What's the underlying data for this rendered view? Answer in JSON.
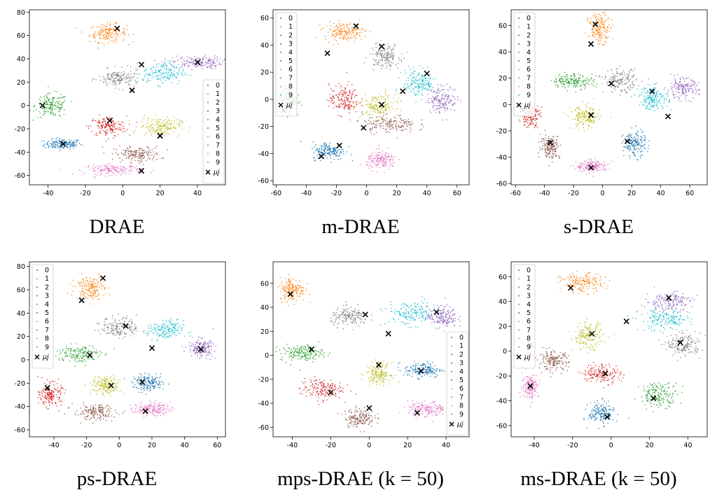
{
  "colors": [
    "#1f77b4",
    "#ff7f0e",
    "#2ca02c",
    "#d62728",
    "#9467bd",
    "#8c564b",
    "#e377c2",
    "#7f7f7f",
    "#bcbd22",
    "#17becf"
  ],
  "legend_labels": [
    "0",
    "1",
    "2",
    "3",
    "4",
    "5",
    "6",
    "7",
    "8",
    "9"
  ],
  "centroid_label": "μj",
  "captions": [
    "DRAE",
    "m-DRAE",
    "s-DRAE",
    "ps-DRAE",
    "mps-DRAE (k = 50)",
    "ms-DRAE (k = 50)"
  ],
  "chart_data": [
    {
      "type": "scatter",
      "title": "DRAE",
      "xlim": [
        -50,
        55
      ],
      "ylim": [
        -68,
        82
      ],
      "xticks": [
        -40,
        -20,
        0,
        20,
        40
      ],
      "yticks": [
        -60,
        -40,
        -20,
        0,
        20,
        40,
        60,
        80
      ],
      "legend_position": "right",
      "series": [
        {
          "name": "0",
          "center": [
            -32,
            -33
          ],
          "spread": [
            9,
            4
          ]
        },
        {
          "name": "1",
          "center": [
            -8,
            62
          ],
          "spread": [
            9,
            7
          ]
        },
        {
          "name": "2",
          "center": [
            -38,
            0
          ],
          "spread": [
            8,
            9
          ]
        },
        {
          "name": "3",
          "center": [
            -8,
            -18
          ],
          "spread": [
            9,
            8
          ]
        },
        {
          "name": "4",
          "center": [
            40,
            37
          ],
          "spread": [
            12,
            5
          ]
        },
        {
          "name": "5",
          "center": [
            8,
            -42
          ],
          "spread": [
            11,
            6
          ]
        },
        {
          "name": "6",
          "center": [
            -5,
            -55
          ],
          "spread": [
            14,
            4
          ]
        },
        {
          "name": "7",
          "center": [
            -2,
            23
          ],
          "spread": [
            10,
            7
          ]
        },
        {
          "name": "8",
          "center": [
            20,
            -18
          ],
          "spread": [
            10,
            7
          ]
        },
        {
          "name": "9",
          "center": [
            22,
            28
          ],
          "spread": [
            10,
            9
          ]
        }
      ],
      "centroids": [
        [
          -32,
          -33
        ],
        [
          -3,
          66
        ],
        [
          -43,
          0
        ],
        [
          -7,
          -13
        ],
        [
          40,
          37
        ],
        [
          20,
          -26
        ],
        [
          10,
          -56
        ],
        [
          5,
          13
        ],
        [
          10,
          35
        ],
        [
          20,
          -26
        ]
      ]
    },
    {
      "type": "scatter",
      "title": "m-DRAE",
      "xlim": [
        -62,
        68
      ],
      "ylim": [
        -63,
        66
      ],
      "xticks": [
        -60,
        -40,
        -20,
        0,
        20,
        40,
        60
      ],
      "yticks": [
        -60,
        -40,
        -20,
        0,
        20,
        40,
        60
      ],
      "legend_position": "upper left",
      "series": [
        {
          "name": "0",
          "center": [
            -25,
            -38
          ],
          "spread": [
            10,
            6
          ]
        },
        {
          "name": "1",
          "center": [
            -15,
            50
          ],
          "spread": [
            12,
            6
          ]
        },
        {
          "name": "2",
          "center": [
            -52,
            0
          ],
          "spread": [
            5,
            8
          ]
        },
        {
          "name": "3",
          "center": [
            -15,
            0
          ],
          "spread": [
            9,
            10
          ]
        },
        {
          "name": "4",
          "center": [
            50,
            0
          ],
          "spread": [
            9,
            9
          ]
        },
        {
          "name": "5",
          "center": [
            15,
            -18
          ],
          "spread": [
            16,
            6
          ]
        },
        {
          "name": "6",
          "center": [
            10,
            -45
          ],
          "spread": [
            9,
            6
          ]
        },
        {
          "name": "7",
          "center": [
            12,
            32
          ],
          "spread": [
            9,
            8
          ]
        },
        {
          "name": "8",
          "center": [
            8,
            -5
          ],
          "spread": [
            10,
            8
          ]
        },
        {
          "name": "9",
          "center": [
            35,
            12
          ],
          "spread": [
            10,
            9
          ]
        }
      ],
      "centroids": [
        [
          -30,
          -42
        ],
        [
          -7,
          54
        ],
        [
          -18,
          -34
        ],
        [
          -26,
          34
        ],
        [
          10,
          -4
        ],
        [
          -2,
          -21
        ],
        [
          24,
          6
        ],
        [
          10,
          39
        ],
        [
          40,
          19
        ],
        [
          -55,
          -8
        ]
      ]
    },
    {
      "type": "scatter",
      "title": "s-DRAE",
      "xlim": [
        -63,
        72
      ],
      "ylim": [
        -61,
        72
      ],
      "xticks": [
        -60,
        -40,
        -20,
        0,
        20,
        40,
        60
      ],
      "yticks": [
        -60,
        -40,
        -20,
        0,
        20,
        40,
        60
      ],
      "legend_position": "upper left",
      "series": [
        {
          "name": "0",
          "center": [
            22,
            -30
          ],
          "spread": [
            7,
            9
          ]
        },
        {
          "name": "1",
          "center": [
            -2,
            58
          ],
          "spread": [
            7,
            10
          ]
        },
        {
          "name": "2",
          "center": [
            -20,
            18
          ],
          "spread": [
            13,
            5
          ]
        },
        {
          "name": "3",
          "center": [
            -50,
            -8
          ],
          "spread": [
            6,
            8
          ]
        },
        {
          "name": "4",
          "center": [
            55,
            12
          ],
          "spread": [
            10,
            7
          ]
        },
        {
          "name": "5",
          "center": [
            -36,
            -32
          ],
          "spread": [
            6,
            8
          ]
        },
        {
          "name": "6",
          "center": [
            -7,
            -47
          ],
          "spread": [
            10,
            4
          ]
        },
        {
          "name": "7",
          "center": [
            12,
            18
          ],
          "spread": [
            10,
            8
          ]
        },
        {
          "name": "8",
          "center": [
            -12,
            -10
          ],
          "spread": [
            9,
            8
          ]
        },
        {
          "name": "9",
          "center": [
            35,
            5
          ],
          "spread": [
            9,
            8
          ]
        }
      ],
      "centroids": [
        [
          -55,
          -4
        ],
        [
          -5,
          61
        ],
        [
          -8,
          46
        ],
        [
          -36,
          -29
        ],
        [
          -8,
          -48
        ],
        [
          -8,
          -8
        ],
        [
          6,
          16
        ],
        [
          17,
          -28
        ],
        [
          34,
          10
        ],
        [
          45,
          -9
        ]
      ]
    },
    {
      "type": "scatter",
      "title": "ps-DRAE",
      "xlim": [
        -55,
        65
      ],
      "ylim": [
        -66,
        84
      ],
      "xticks": [
        -40,
        -20,
        0,
        20,
        40,
        60
      ],
      "yticks": [
        -60,
        -40,
        -20,
        0,
        20,
        40,
        60,
        80
      ],
      "legend_position": "upper left",
      "series": [
        {
          "name": "0",
          "center": [
            18,
            -20
          ],
          "spread": [
            9,
            6
          ]
        },
        {
          "name": "1",
          "center": [
            -18,
            62
          ],
          "spread": [
            8,
            9
          ]
        },
        {
          "name": "2",
          "center": [
            -25,
            5
          ],
          "spread": [
            12,
            7
          ]
        },
        {
          "name": "3",
          "center": [
            -42,
            -30
          ],
          "spread": [
            6,
            9
          ]
        },
        {
          "name": "4",
          "center": [
            50,
            10
          ],
          "spread": [
            7,
            7
          ]
        },
        {
          "name": "5",
          "center": [
            -15,
            -45
          ],
          "spread": [
            12,
            6
          ]
        },
        {
          "name": "6",
          "center": [
            20,
            -42
          ],
          "spread": [
            10,
            5
          ]
        },
        {
          "name": "7",
          "center": [
            0,
            28
          ],
          "spread": [
            10,
            8
          ]
        },
        {
          "name": "8",
          "center": [
            -8,
            -22
          ],
          "spread": [
            8,
            7
          ]
        },
        {
          "name": "9",
          "center": [
            28,
            25
          ],
          "spread": [
            10,
            8
          ]
        }
      ],
      "centroids": [
        [
          -10,
          70
        ],
        [
          -23,
          51
        ],
        [
          4,
          29
        ],
        [
          -18,
          4
        ],
        [
          -44,
          -24
        ],
        [
          -5,
          -22
        ],
        [
          14,
          -19
        ],
        [
          16,
          -44
        ],
        [
          20,
          10
        ],
        [
          50,
          9
        ]
      ]
    },
    {
      "type": "scatter",
      "title": "mps-DRAE (k = 50)",
      "xlim": [
        -50,
        52
      ],
      "ylim": [
        -68,
        78
      ],
      "xticks": [
        -40,
        -20,
        0,
        20,
        40
      ],
      "yticks": [
        -60,
        -40,
        -20,
        0,
        20,
        40,
        60
      ],
      "legend_position": "lower right",
      "series": [
        {
          "name": "0",
          "center": [
            28,
            -12
          ],
          "spread": [
            9,
            6
          ]
        },
        {
          "name": "1",
          "center": [
            -40,
            55
          ],
          "spread": [
            6,
            9
          ]
        },
        {
          "name": "2",
          "center": [
            -35,
            2
          ],
          "spread": [
            10,
            6
          ]
        },
        {
          "name": "3",
          "center": [
            -25,
            -28
          ],
          "spread": [
            10,
            8
          ]
        },
        {
          "name": "4",
          "center": [
            38,
            32
          ],
          "spread": [
            7,
            8
          ]
        },
        {
          "name": "5",
          "center": [
            -5,
            -52
          ],
          "spread": [
            7,
            7
          ]
        },
        {
          "name": "6",
          "center": [
            30,
            -45
          ],
          "spread": [
            9,
            6
          ]
        },
        {
          "name": "7",
          "center": [
            -10,
            32
          ],
          "spread": [
            9,
            7
          ]
        },
        {
          "name": "8",
          "center": [
            5,
            -15
          ],
          "spread": [
            6,
            8
          ]
        },
        {
          "name": "9",
          "center": [
            22,
            35
          ],
          "spread": [
            12,
            9
          ]
        }
      ],
      "centroids": [
        [
          -41,
          51
        ],
        [
          -2,
          34
        ],
        [
          35,
          36
        ],
        [
          -30,
          5
        ],
        [
          5,
          -8
        ],
        [
          10,
          18
        ],
        [
          -20,
          -31
        ],
        [
          27,
          -13
        ],
        [
          0,
          -44
        ],
        [
          25,
          -48
        ]
      ]
    },
    {
      "type": "scatter",
      "title": "ms-DRAE (k = 50)",
      "xlim": [
        -52,
        50
      ],
      "ylim": [
        -69,
        72
      ],
      "xticks": [
        -40,
        -20,
        0,
        20,
        40
      ],
      "yticks": [
        -60,
        -40,
        -20,
        0,
        20,
        40,
        60
      ],
      "legend_position": "upper left",
      "series": [
        {
          "name": "0",
          "center": [
            -5,
            -50
          ],
          "spread": [
            6,
            8
          ]
        },
        {
          "name": "1",
          "center": [
            -15,
            55
          ],
          "spread": [
            10,
            7
          ]
        },
        {
          "name": "2",
          "center": [
            25,
            -35
          ],
          "spread": [
            9,
            9
          ]
        },
        {
          "name": "3",
          "center": [
            -5,
            -18
          ],
          "spread": [
            9,
            7
          ]
        },
        {
          "name": "4",
          "center": [
            30,
            40
          ],
          "spread": [
            11,
            7
          ]
        },
        {
          "name": "5",
          "center": [
            -30,
            -8
          ],
          "spread": [
            7,
            7
          ]
        },
        {
          "name": "6",
          "center": [
            -42,
            -28
          ],
          "spread": [
            4,
            9
          ]
        },
        {
          "name": "7",
          "center": [
            38,
            5
          ],
          "spread": [
            8,
            8
          ]
        },
        {
          "name": "8",
          "center": [
            -12,
            12
          ],
          "spread": [
            7,
            10
          ]
        },
        {
          "name": "9",
          "center": [
            28,
            25
          ],
          "spread": [
            12,
            8
          ]
        }
      ],
      "centroids": [
        [
          -21,
          51
        ],
        [
          30,
          43
        ],
        [
          8,
          24
        ],
        [
          -10,
          14
        ],
        [
          36,
          7
        ],
        [
          -3,
          -18
        ],
        [
          22,
          -38
        ],
        [
          -2,
          -53
        ],
        [
          -42,
          -28
        ],
        [
          -42,
          5
        ]
      ]
    }
  ]
}
